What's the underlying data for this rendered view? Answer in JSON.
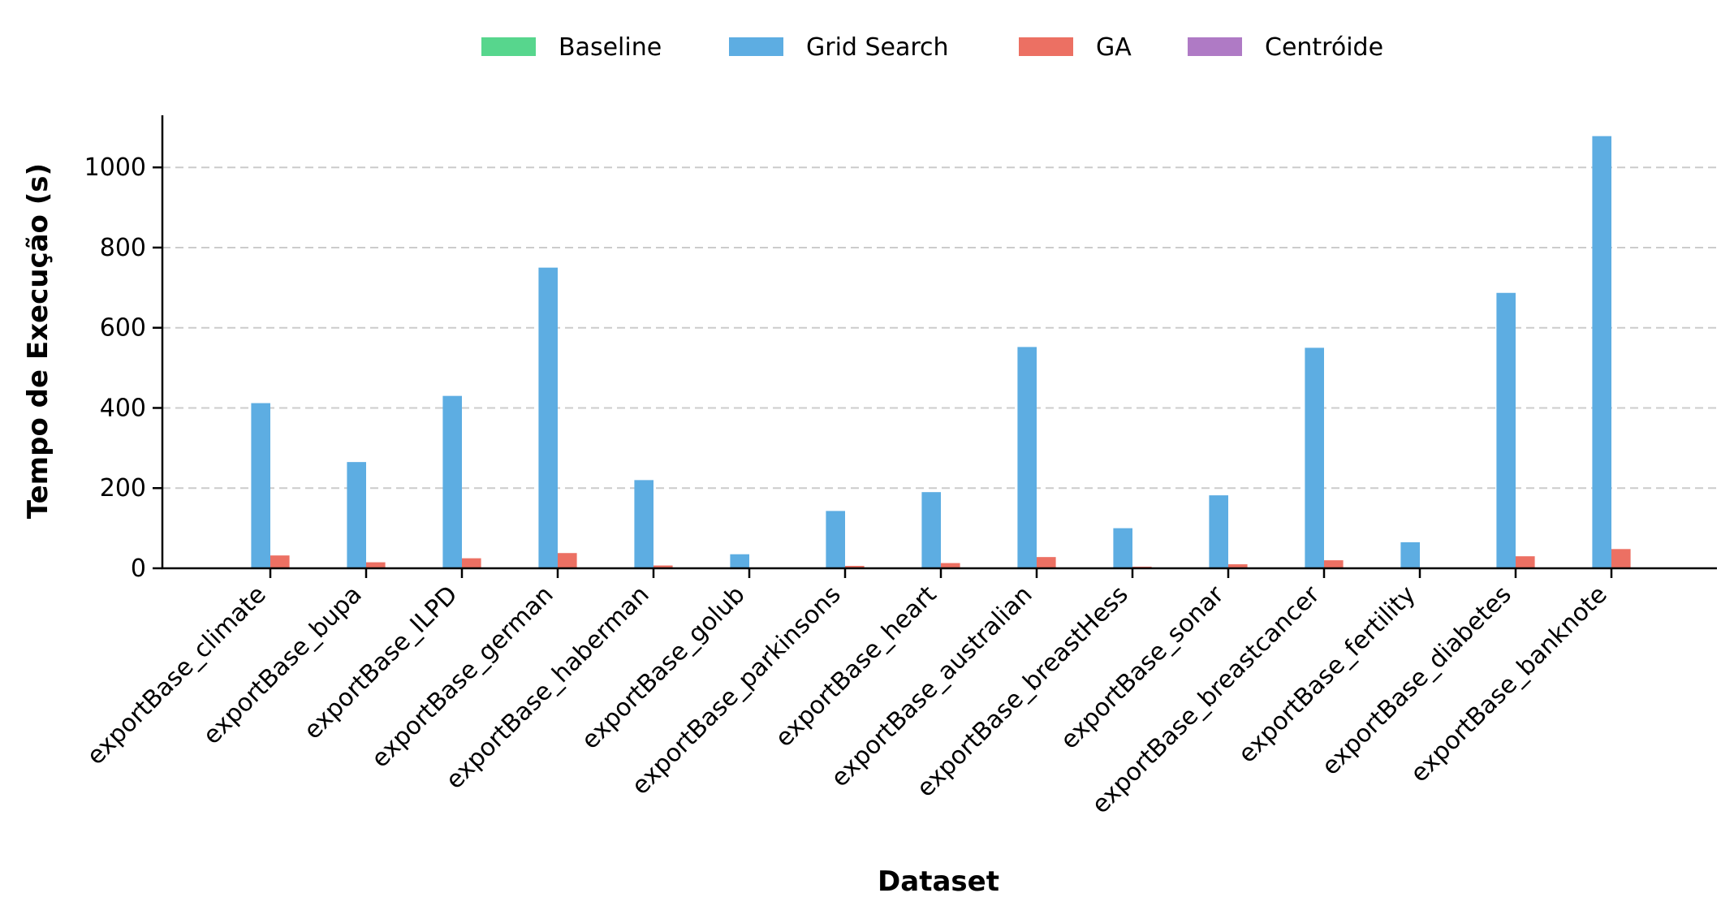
{
  "chart_data": {
    "type": "bar",
    "title": "",
    "xlabel": "Dataset",
    "ylabel": "Tempo de Execução (s)",
    "ylim": [
      0,
      1130
    ],
    "yticks": [
      0,
      200,
      400,
      600,
      800,
      1000
    ],
    "grid": "y-dashed",
    "legend_position": "top-center",
    "categories": [
      "exportBase_climate",
      "exportBase_bupa",
      "exportBase_ILPD",
      "exportBase_german",
      "exportBase_haberman",
      "exportBase_golub",
      "exportBase_parkinsons",
      "exportBase_heart",
      "exportBase_australian",
      "exportBase_breastHess",
      "exportBase_sonar",
      "exportBase_breastcancer",
      "exportBase_fertility",
      "exportBase_diabetes",
      "exportBase_banknote"
    ],
    "series": [
      {
        "name": "Baseline",
        "color": "#57d68d",
        "values": [
          0,
          0,
          0,
          0,
          0,
          0,
          0,
          0,
          0,
          0,
          0,
          0,
          0,
          0,
          0
        ]
      },
      {
        "name": "Grid Search",
        "color": "#5dade2",
        "values": [
          412,
          265,
          430,
          750,
          220,
          35,
          143,
          190,
          552,
          100,
          182,
          550,
          65,
          687,
          1078
        ]
      },
      {
        "name": "GA",
        "color": "#ec7063",
        "values": [
          32,
          15,
          25,
          38,
          7,
          1,
          6,
          13,
          28,
          4,
          10,
          20,
          2,
          30,
          48
        ]
      },
      {
        "name": "Centróide",
        "color": "#af7ac5",
        "values": [
          0,
          0,
          0,
          0,
          0,
          0,
          0,
          0,
          0,
          0,
          0,
          0,
          0,
          0,
          0
        ]
      }
    ]
  }
}
